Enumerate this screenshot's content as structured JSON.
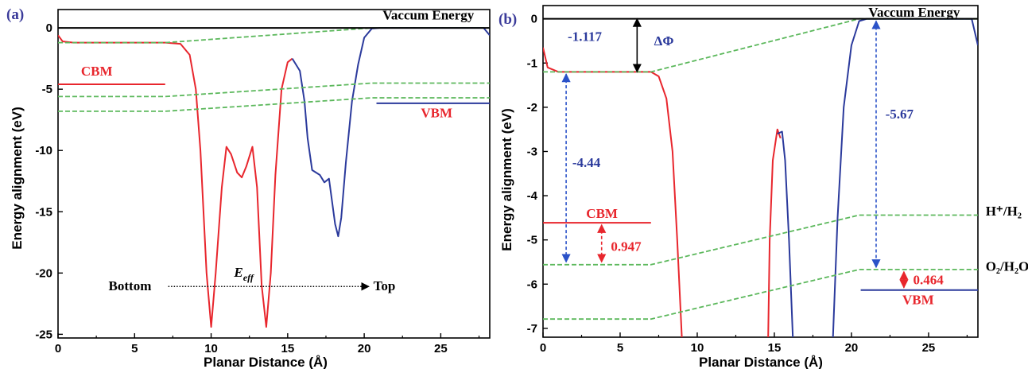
{
  "colors": {
    "red": "#e8262d",
    "blue": "#2b3a9c",
    "green": "#5cb85c",
    "black": "#000000",
    "annot_blue": "#2b52c8",
    "panel_label": "#3b3b9a"
  },
  "chart_data": [
    {
      "type": "line",
      "panel_label": "(a)",
      "xlabel": "Planar Distance (Å)",
      "ylabel": "Energy alignment (eV)",
      "xlim": [
        0,
        28.2
      ],
      "ylim": [
        -25.3,
        1.5
      ],
      "xticks": [
        0,
        5,
        10,
        15,
        20,
        25
      ],
      "yticks": [
        0,
        -5,
        -10,
        -15,
        -20,
        -25
      ],
      "grid": false,
      "series": [
        {
          "color": "red",
          "points": [
            [
              0,
              -0.6
            ],
            [
              0.3,
              -1.1
            ],
            [
              1,
              -1.2
            ],
            [
              7,
              -1.2
            ],
            [
              8,
              -1.3
            ],
            [
              8.6,
              -2.2
            ],
            [
              9,
              -5
            ],
            [
              9.3,
              -10
            ],
            [
              9.7,
              -20
            ],
            [
              10,
              -24.4
            ],
            [
              10.3,
              -20
            ],
            [
              10.7,
              -13
            ],
            [
              11,
              -9.7
            ],
            [
              11.3,
              -10.3
            ],
            [
              11.7,
              -11.8
            ],
            [
              12,
              -12.2
            ],
            [
              12.3,
              -11.3
            ],
            [
              12.7,
              -9.7
            ],
            [
              13,
              -13
            ],
            [
              13.3,
              -21
            ],
            [
              13.6,
              -24.4
            ],
            [
              13.9,
              -20
            ],
            [
              14.2,
              -12
            ],
            [
              14.6,
              -5
            ],
            [
              15,
              -2.8
            ],
            [
              15.3,
              -2.5
            ]
          ]
        },
        {
          "color": "blue",
          "points": [
            [
              15.3,
              -2.5
            ],
            [
              15.8,
              -3.5
            ],
            [
              16.1,
              -6
            ],
            [
              16.3,
              -9
            ],
            [
              16.6,
              -11.6
            ],
            [
              17.1,
              -12
            ],
            [
              17.4,
              -12.6
            ],
            [
              17.7,
              -12.3
            ],
            [
              18.1,
              -16
            ],
            [
              18.3,
              -17
            ],
            [
              18.5,
              -15.5
            ],
            [
              18.8,
              -11
            ],
            [
              19.2,
              -6
            ],
            [
              19.6,
              -3
            ],
            [
              20,
              -0.8
            ],
            [
              20.5,
              -0.05
            ],
            [
              21,
              0
            ],
            [
              27.8,
              0
            ],
            [
              28.2,
              -0.6
            ]
          ]
        },
        {
          "color": "green",
          "dashed": true,
          "points": [
            [
              0,
              -1.2
            ],
            [
              7,
              -1.2
            ],
            [
              20.5,
              0
            ],
            [
              28.2,
              0
            ]
          ]
        },
        {
          "color": "green",
          "dashed": true,
          "points": [
            [
              0,
              -5.6
            ],
            [
              7,
              -5.6
            ],
            [
              20.5,
              -4.5
            ],
            [
              28.2,
              -4.5
            ]
          ]
        },
        {
          "color": "green",
          "dashed": true,
          "points": [
            [
              0,
              -6.8
            ],
            [
              7,
              -6.8
            ],
            [
              20.5,
              -5.7
            ],
            [
              28.2,
              -5.7
            ]
          ]
        }
      ],
      "hlines": [
        {
          "y": 0,
          "x": [
            0,
            28.2
          ],
          "color": "black"
        },
        {
          "y": -4.6,
          "x": [
            0,
            7
          ],
          "color": "red",
          "label": "CBM",
          "label_x": 1.5,
          "label_y": -3.9,
          "label_color": "red"
        },
        {
          "y": -6.15,
          "x": [
            20.8,
            28.2
          ],
          "color": "blue",
          "label": "VBM",
          "label_x": 23.7,
          "label_y": -7.3,
          "label_color": "red"
        }
      ],
      "annotations": [
        {
          "text": "Vaccum Energy",
          "x": 21.2,
          "y": 0.7
        },
        {
          "text": "Bottom",
          "x": 3.3,
          "y": -21.4
        },
        {
          "text": "E",
          "sub": "eff",
          "x": 11.5,
          "y": -20.3
        },
        {
          "text": "Top",
          "x": 20.6,
          "y": -21.4
        }
      ],
      "arrow": {
        "x": [
          7.2,
          20.3
        ],
        "y": -21.1,
        "dotted": true
      }
    },
    {
      "type": "line",
      "panel_label": "(b)",
      "xlabel": "Planar Distance (Å)",
      "ylabel": "Energy alignment (eV)",
      "xlim": [
        0,
        28.2
      ],
      "ylim": [
        -7.2,
        0.3
      ],
      "xticks": [
        0,
        5,
        10,
        15,
        20,
        25
      ],
      "yticks": [
        0,
        -1,
        -2,
        -3,
        -4,
        -5,
        -6,
        -7
      ],
      "grid": false,
      "series": [
        {
          "color": "red",
          "points": [
            [
              0,
              -0.65
            ],
            [
              0.3,
              -1.1
            ],
            [
              1,
              -1.2
            ],
            [
              7,
              -1.2
            ],
            [
              7.5,
              -1.3
            ],
            [
              8,
              -1.8
            ],
            [
              8.4,
              -3
            ],
            [
              8.7,
              -5
            ],
            [
              9,
              -7.2
            ]
          ]
        },
        {
          "color": "red",
          "points": [
            [
              14.6,
              -7.2
            ],
            [
              14.7,
              -5
            ],
            [
              14.9,
              -3.2
            ],
            [
              15.2,
              -2.5
            ],
            [
              15.4,
              -2.7
            ]
          ]
        },
        {
          "color": "blue",
          "points": [
            [
              15.2,
              -2.6
            ],
            [
              15.5,
              -2.55
            ],
            [
              15.7,
              -3.2
            ],
            [
              15.95,
              -5
            ],
            [
              16.2,
              -7.2
            ]
          ]
        },
        {
          "color": "blue",
          "points": [
            [
              18.8,
              -7.2
            ],
            [
              19.1,
              -4.5
            ],
            [
              19.5,
              -2
            ],
            [
              20,
              -0.6
            ],
            [
              20.5,
              -0.05
            ],
            [
              21,
              0
            ],
            [
              27.8,
              0
            ],
            [
              28.2,
              -0.6
            ]
          ]
        },
        {
          "color": "green",
          "dashed": true,
          "points": [
            [
              0,
              -1.2
            ],
            [
              7,
              -1.2
            ],
            [
              20.5,
              0
            ],
            [
              28.2,
              0
            ]
          ]
        },
        {
          "color": "green",
          "dashed": true,
          "points": [
            [
              0,
              -5.56
            ],
            [
              7,
              -5.56
            ],
            [
              20.5,
              -4.44
            ],
            [
              28.2,
              -4.44
            ]
          ]
        },
        {
          "color": "green",
          "dashed": true,
          "points": [
            [
              0,
              -6.79
            ],
            [
              7,
              -6.79
            ],
            [
              20.5,
              -5.67
            ],
            [
              28.2,
              -5.67
            ]
          ]
        }
      ],
      "hlines": [
        {
          "y": 0,
          "x": [
            0,
            28.2
          ],
          "color": "black"
        },
        {
          "y": -4.613,
          "x": [
            0,
            7
          ],
          "color": "red",
          "label": "CBM",
          "label_x": 2.8,
          "label_y": -4.5,
          "label_color": "red"
        },
        {
          "y": -6.134,
          "x": [
            20.6,
            28.2
          ],
          "color": "blue",
          "label": "VBM",
          "label_x": 23.3,
          "label_y": -6.45,
          "label_color": "red"
        }
      ],
      "annotations": [
        {
          "text": "Vaccum Energy",
          "x": 21.1,
          "y": 0.05
        },
        {
          "text": "-1.117",
          "x": 1.6,
          "y": -0.5,
          "color": "blue"
        },
        {
          "text": "ΔΦ",
          "x": 7.2,
          "y": -0.6,
          "color": "blue"
        },
        {
          "text": "-4.44",
          "x": 1.9,
          "y": -3.35,
          "color": "blue"
        },
        {
          "text": "-5.67",
          "x": 22.2,
          "y": -2.25,
          "color": "blue"
        },
        {
          "text": "0.947",
          "x": 4.4,
          "y": -5.25,
          "color": "red"
        },
        {
          "text": "0.464",
          "x": 24,
          "y": -6.0,
          "color": "red"
        },
        {
          "text": "H⁺/H₂",
          "x": 28.7,
          "y": -4.45
        },
        {
          "text": "O₂/H₂O",
          "x": 28.7,
          "y": -5.7
        }
      ],
      "arrows": [
        {
          "x": 6.1,
          "y1": 0,
          "y2": -1.2,
          "color": "black",
          "double": true,
          "dashed": false
        },
        {
          "x": 1.5,
          "y1": -1.25,
          "y2": -5.5,
          "color": "annot_blue",
          "double": true,
          "dashed": true
        },
        {
          "x": 21.6,
          "y1": -0.05,
          "y2": -5.62,
          "color": "annot_blue",
          "double": true,
          "dashed": true
        },
        {
          "x": 3.8,
          "y1": -4.66,
          "y2": -5.5,
          "color": "red",
          "double": true,
          "dashed": true
        },
        {
          "x": 23.4,
          "y1": -5.72,
          "y2": -6.08,
          "color": "red",
          "double": true,
          "dashed": false
        }
      ]
    }
  ]
}
